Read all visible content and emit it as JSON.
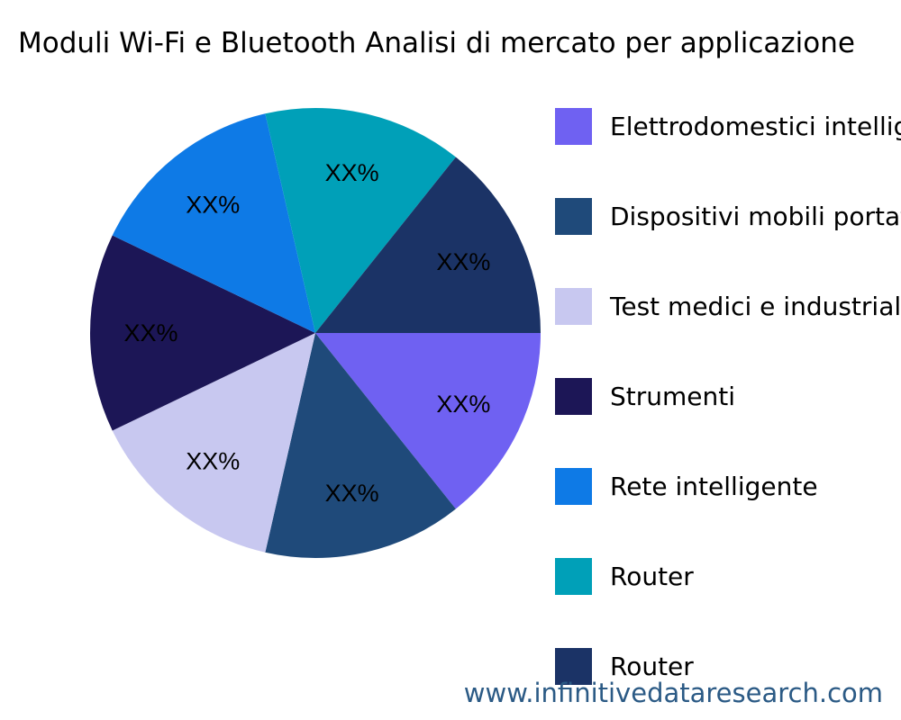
{
  "chart_data": {
    "type": "pie",
    "title": "Moduli Wi-Fi e Bluetooth Analisi di mercato per applicazione",
    "categories": [
      "Elettrodomestici intelligenti",
      "Dispositivi mobili portatili",
      "Test medici e industriali",
      "Strumenti",
      "Rete intelligente",
      "Router",
      "Router"
    ],
    "values": [
      1,
      1,
      1,
      1,
      1,
      1,
      1
    ],
    "data_labels": [
      "XX%",
      "XX%",
      "XX%",
      "XX%",
      "XX%",
      "XX%",
      "XX%"
    ],
    "colors": [
      "#6f61f2",
      "#1f4a7a",
      "#c8c8f0",
      "#1c1656",
      "#0e7ae6",
      "#00a0b8",
      "#1b3366"
    ],
    "legend_position": "right",
    "start_angle": "3 o'clock, clockwise"
  },
  "watermark": "www.infinitivedataresearch.com"
}
